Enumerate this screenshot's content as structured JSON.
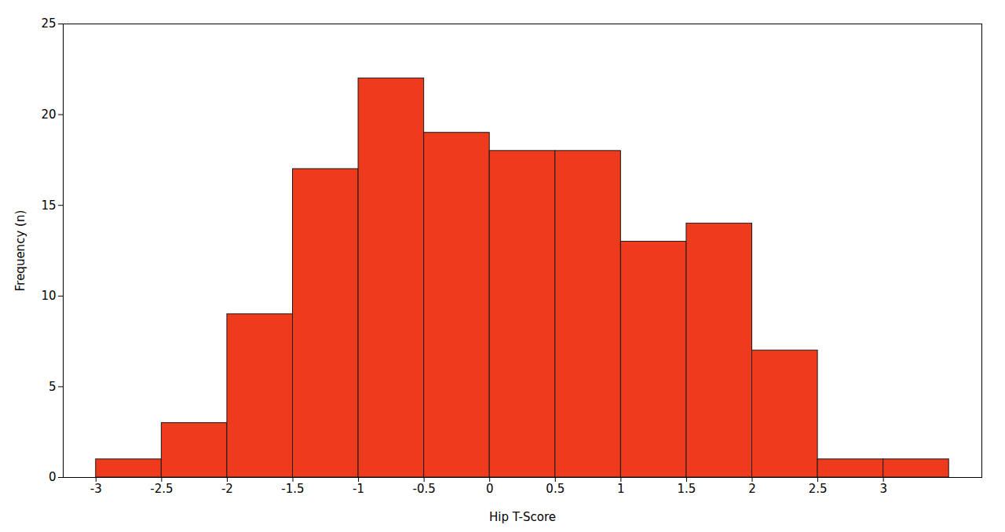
{
  "chart_data": {
    "type": "histogram",
    "xlabel": "Hip T-Score",
    "ylabel": "Frequency (n)",
    "bins": [
      -3.0,
      -2.5,
      -2.0,
      -1.5,
      -1.0,
      -0.5,
      0.0,
      0.5,
      1.0,
      1.5,
      2.0,
      2.5,
      3.0,
      3.5
    ],
    "values": [
      1,
      3,
      9,
      17,
      22,
      19,
      18,
      18,
      13,
      14,
      7,
      1,
      1
    ],
    "color": "#EE3B1E",
    "xlim": [
      -3.25,
      3.75
    ],
    "ylim": [
      0,
      25
    ],
    "xticks": [
      -3,
      -2.5,
      -2,
      -1.5,
      -1,
      -0.5,
      0,
      0.5,
      1,
      1.5,
      2,
      2.5,
      3
    ],
    "yticks": [
      0,
      5,
      10,
      15,
      20,
      25
    ],
    "grid": false
  }
}
